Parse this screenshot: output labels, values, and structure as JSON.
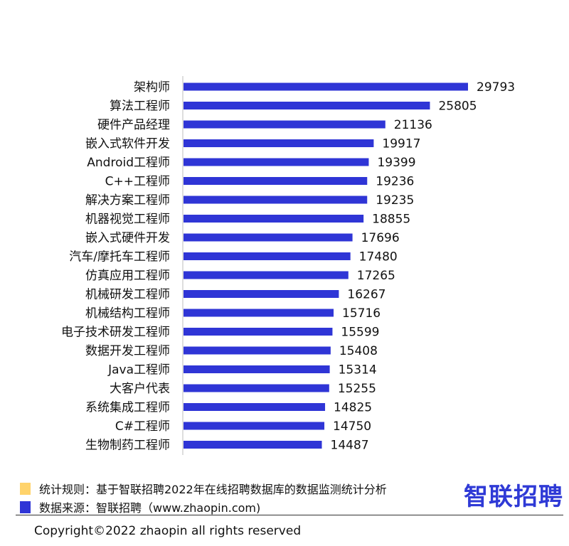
{
  "chart_data": {
    "type": "bar",
    "orientation": "horizontal",
    "categories": [
      "架构师",
      "算法工程师",
      "硬件产品经理",
      "嵌入式软件开发",
      "Android工程师",
      "C++工程师",
      "解决方案工程师",
      "机器视觉工程师",
      "嵌入式硬件开发",
      "汽车/摩托车工程师",
      "仿真应用工程师",
      "机械研发工程师",
      "机械结构工程师",
      "电子技术研发工程师",
      "数据开发工程师",
      "Java工程师",
      "大客户代表",
      "系统集成工程师",
      "C#工程师",
      "生物制药工程师"
    ],
    "values": [
      29793,
      25805,
      21136,
      19917,
      19399,
      19236,
      19235,
      18855,
      17696,
      17480,
      17265,
      16267,
      15716,
      15599,
      15408,
      15314,
      15255,
      14825,
      14750,
      14487
    ],
    "value_labels": [
      "29793",
      "25805",
      "21136",
      "19917",
      "19399",
      "19236",
      "19235",
      "18855",
      "17696",
      "17480",
      "17265",
      "16267",
      "15716",
      "15599",
      "15408",
      "15314",
      "15255",
      "14825",
      "14750",
      "14487"
    ],
    "bar_color": "#2f35d6",
    "xlim": [
      0,
      30000
    ],
    "grid": false,
    "legend": "none"
  },
  "footer": {
    "rule_text": "统计规则：基于智联招聘2022年在线招聘数据库的数据监测统计分析",
    "rule_color": "#ffd36b",
    "source_text": "数据来源：智联招聘（www.zhaopin.com)",
    "source_color": "#2f35d6",
    "logo_text": "智联招聘",
    "copyright": "Copyright©2022 zhaopin all rights reserved"
  }
}
